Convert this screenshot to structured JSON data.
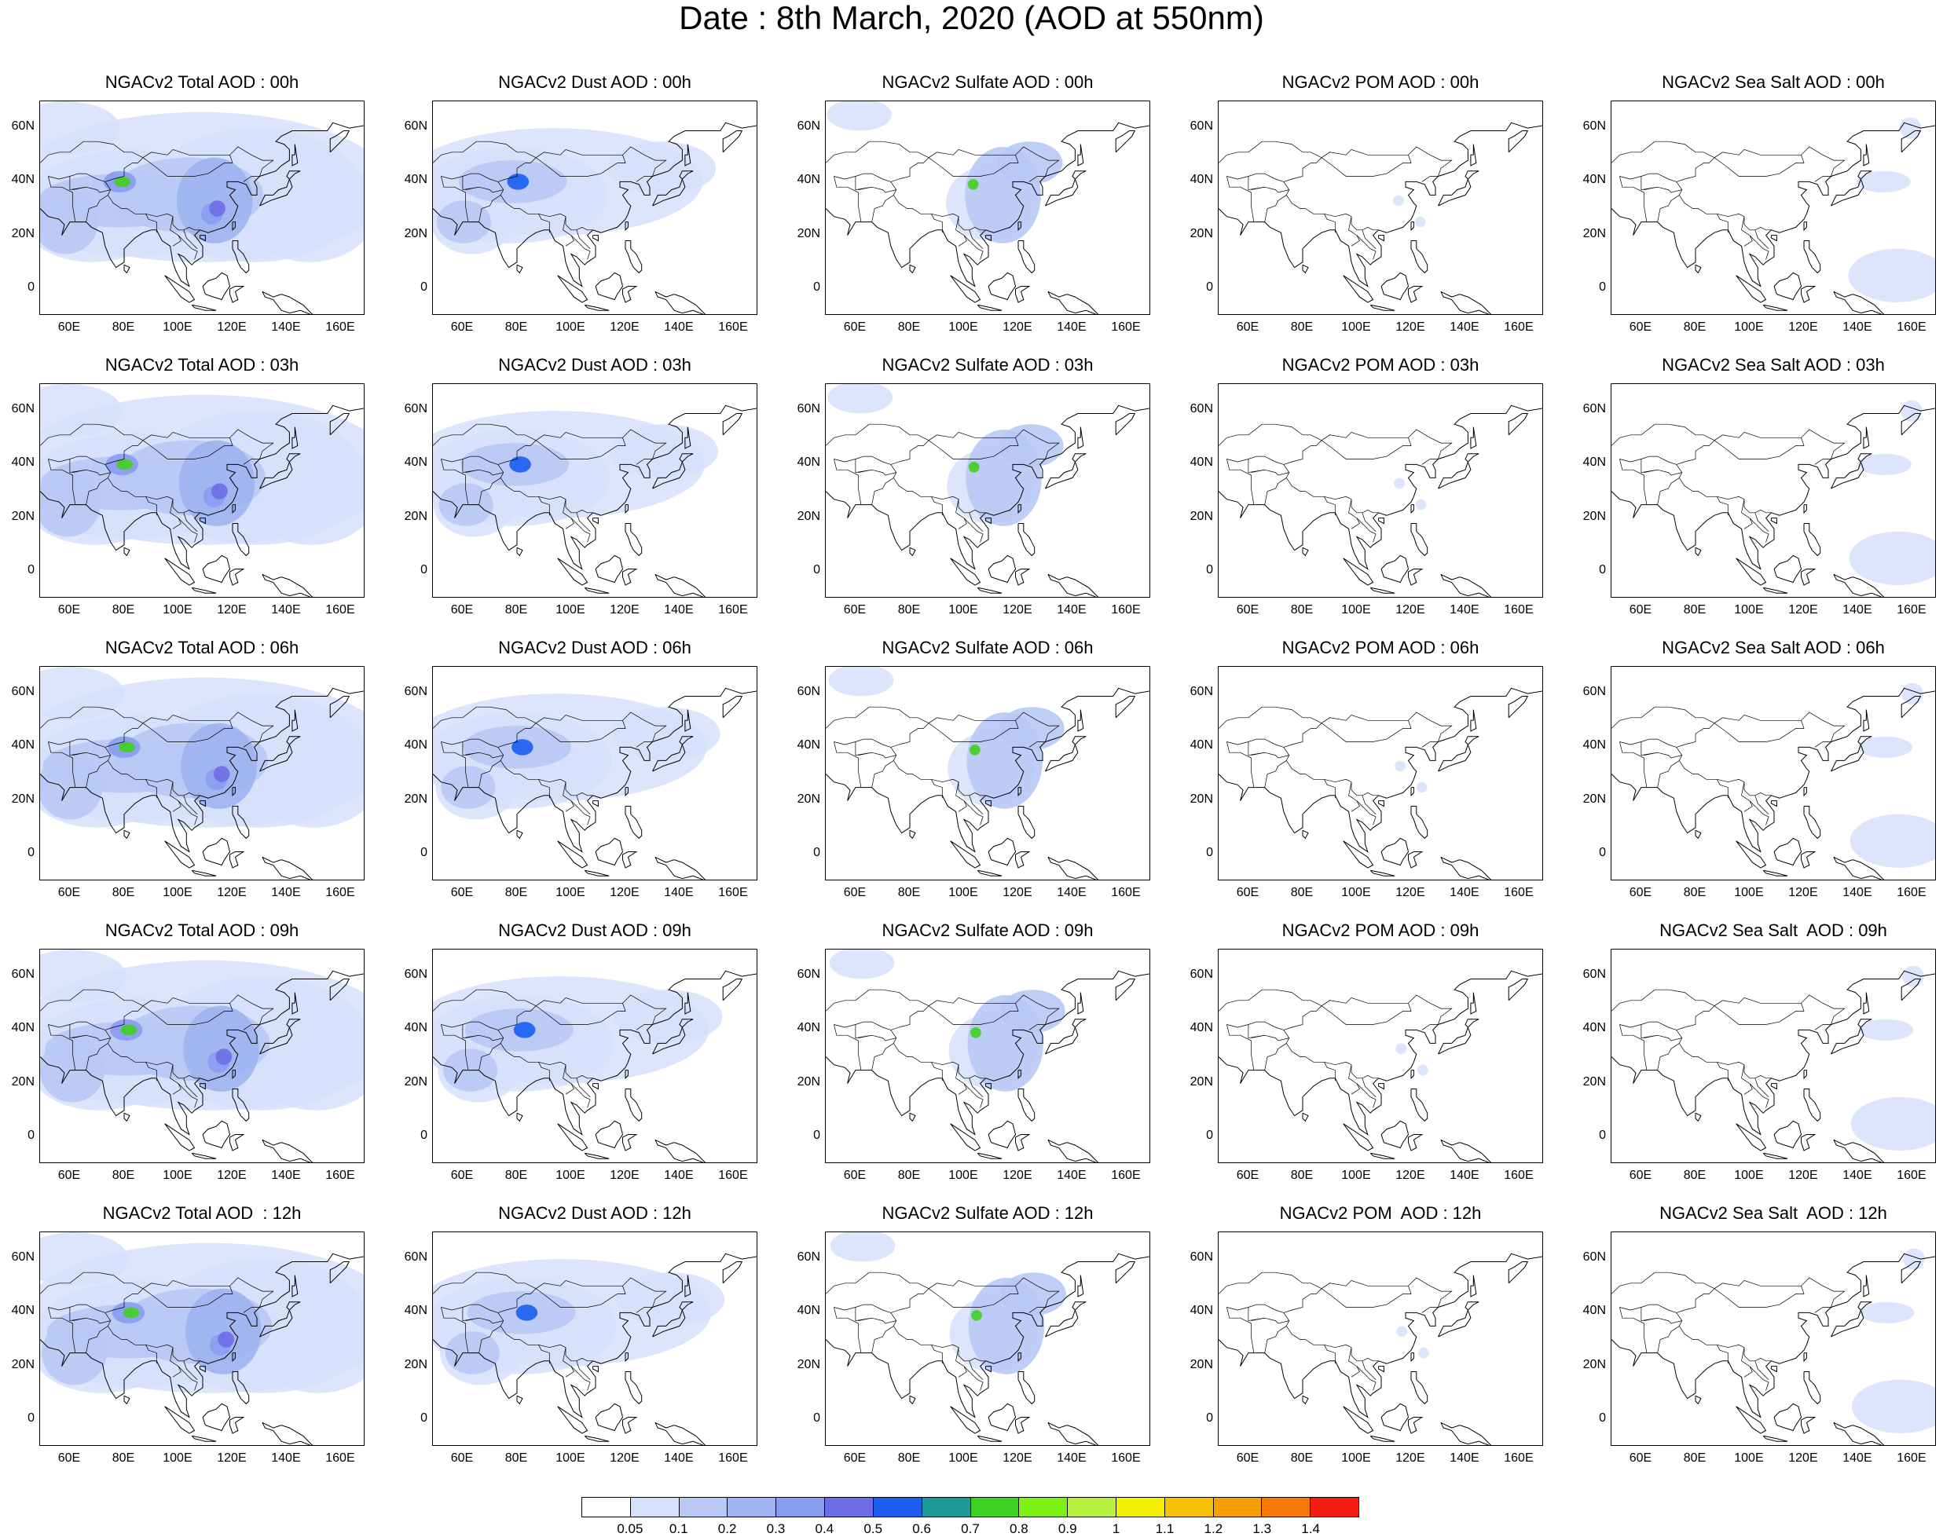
{
  "title": "Date : 8th March, 2020 (AOD at 550nm)",
  "x_ticks": [
    "60E",
    "80E",
    "100E",
    "120E",
    "140E",
    "160E"
  ],
  "y_ticks": [
    "60N",
    "40N",
    "20N",
    "0"
  ],
  "panel_titles": [
    [
      "NGACv2 Total AOD : 00h",
      "NGACv2 Dust AOD : 00h",
      "NGACv2 Sulfate AOD : 00h",
      "NGACv2 POM AOD : 00h",
      "NGACv2 Sea Salt AOD : 00h"
    ],
    [
      "NGACv2 Total AOD : 03h",
      "NGACv2 Dust AOD : 03h",
      "NGACv2 Sulfate AOD : 03h",
      "NGACv2 POM AOD : 03h",
      "NGACv2 Sea Salt AOD : 03h"
    ],
    [
      "NGACv2 Total AOD : 06h",
      "NGACv2 Dust AOD : 06h",
      "NGACv2 Sulfate AOD : 06h",
      "NGACv2 POM AOD : 06h",
      "NGACv2 Sea Salt AOD : 06h"
    ],
    [
      "NGACv2 Total AOD : 09h",
      "NGACv2 Dust AOD : 09h",
      "NGACv2 Sulfate AOD : 09h",
      "NGACv2 POM AOD : 09h",
      "NGACv2 Sea Salt  AOD : 09h"
    ],
    [
      "NGACv2 Total AOD  : 12h",
      "NGACv2 Dust AOD : 12h",
      "NGACv2 Sulfate AOD : 12h",
      "NGACv2 POM  AOD : 12h",
      "NGACv2 Sea Salt  AOD : 12h"
    ]
  ],
  "colorbar": {
    "labels": [
      "0.05",
      "0.1",
      "0.2",
      "0.3",
      "0.4",
      "0.5",
      "0.6",
      "0.7",
      "0.8",
      "0.9",
      "1",
      "1.1",
      "1.2",
      "1.3",
      "1.4"
    ],
    "colors": [
      "#ffffff",
      "#d6e0fb",
      "#b8c9f5",
      "#9fb4f0",
      "#8a9cef",
      "#6b6ee4",
      "#1a5ef2",
      "#1c9a9a",
      "#3fd01f",
      "#7df014",
      "#b8f040",
      "#f0f000",
      "#f5c200",
      "#f5a000",
      "#f57800",
      "#f51c10"
    ]
  }
}
